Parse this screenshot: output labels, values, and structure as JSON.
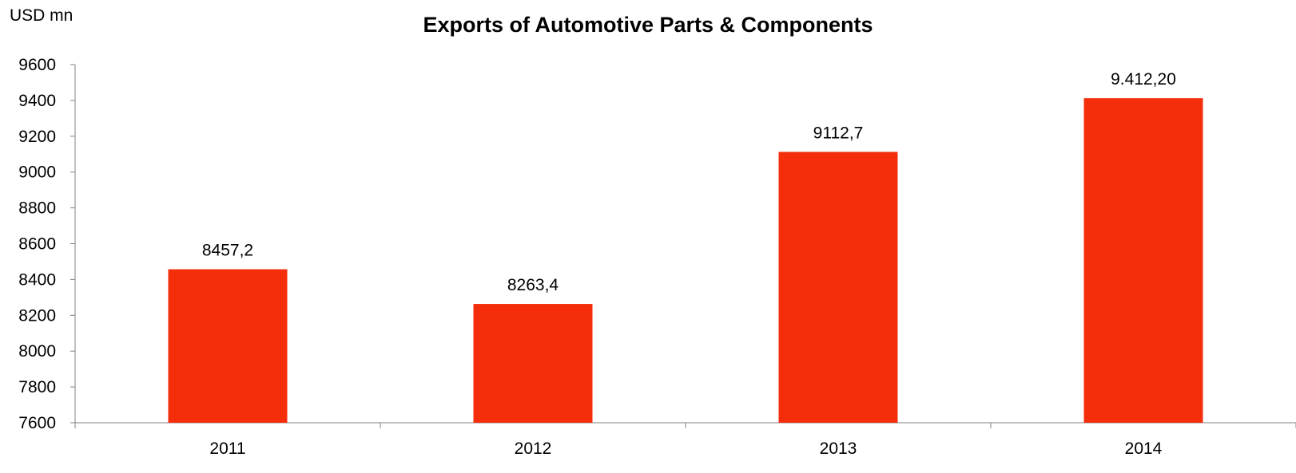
{
  "chart_data": {
    "type": "bar",
    "title": "Exports of Automotive Parts & Components",
    "ylabel": "USD mn",
    "xlabel": "",
    "categories": [
      "2011",
      "2012",
      "2013",
      "2014"
    ],
    "values": [
      8457.2,
      8263.4,
      9112.7,
      9412.2
    ],
    "data_labels": [
      "8457,2",
      "8263,4",
      "9112,7",
      "9.412,20"
    ],
    "ylim": [
      7600,
      9600
    ],
    "y_ticks": [
      "7600",
      "7800",
      "8000",
      "8200",
      "8400",
      "8600",
      "8800",
      "9000",
      "9200",
      "9400",
      "9600"
    ],
    "grid": false,
    "legend": "none",
    "bar_color": "#F42D0B"
  }
}
